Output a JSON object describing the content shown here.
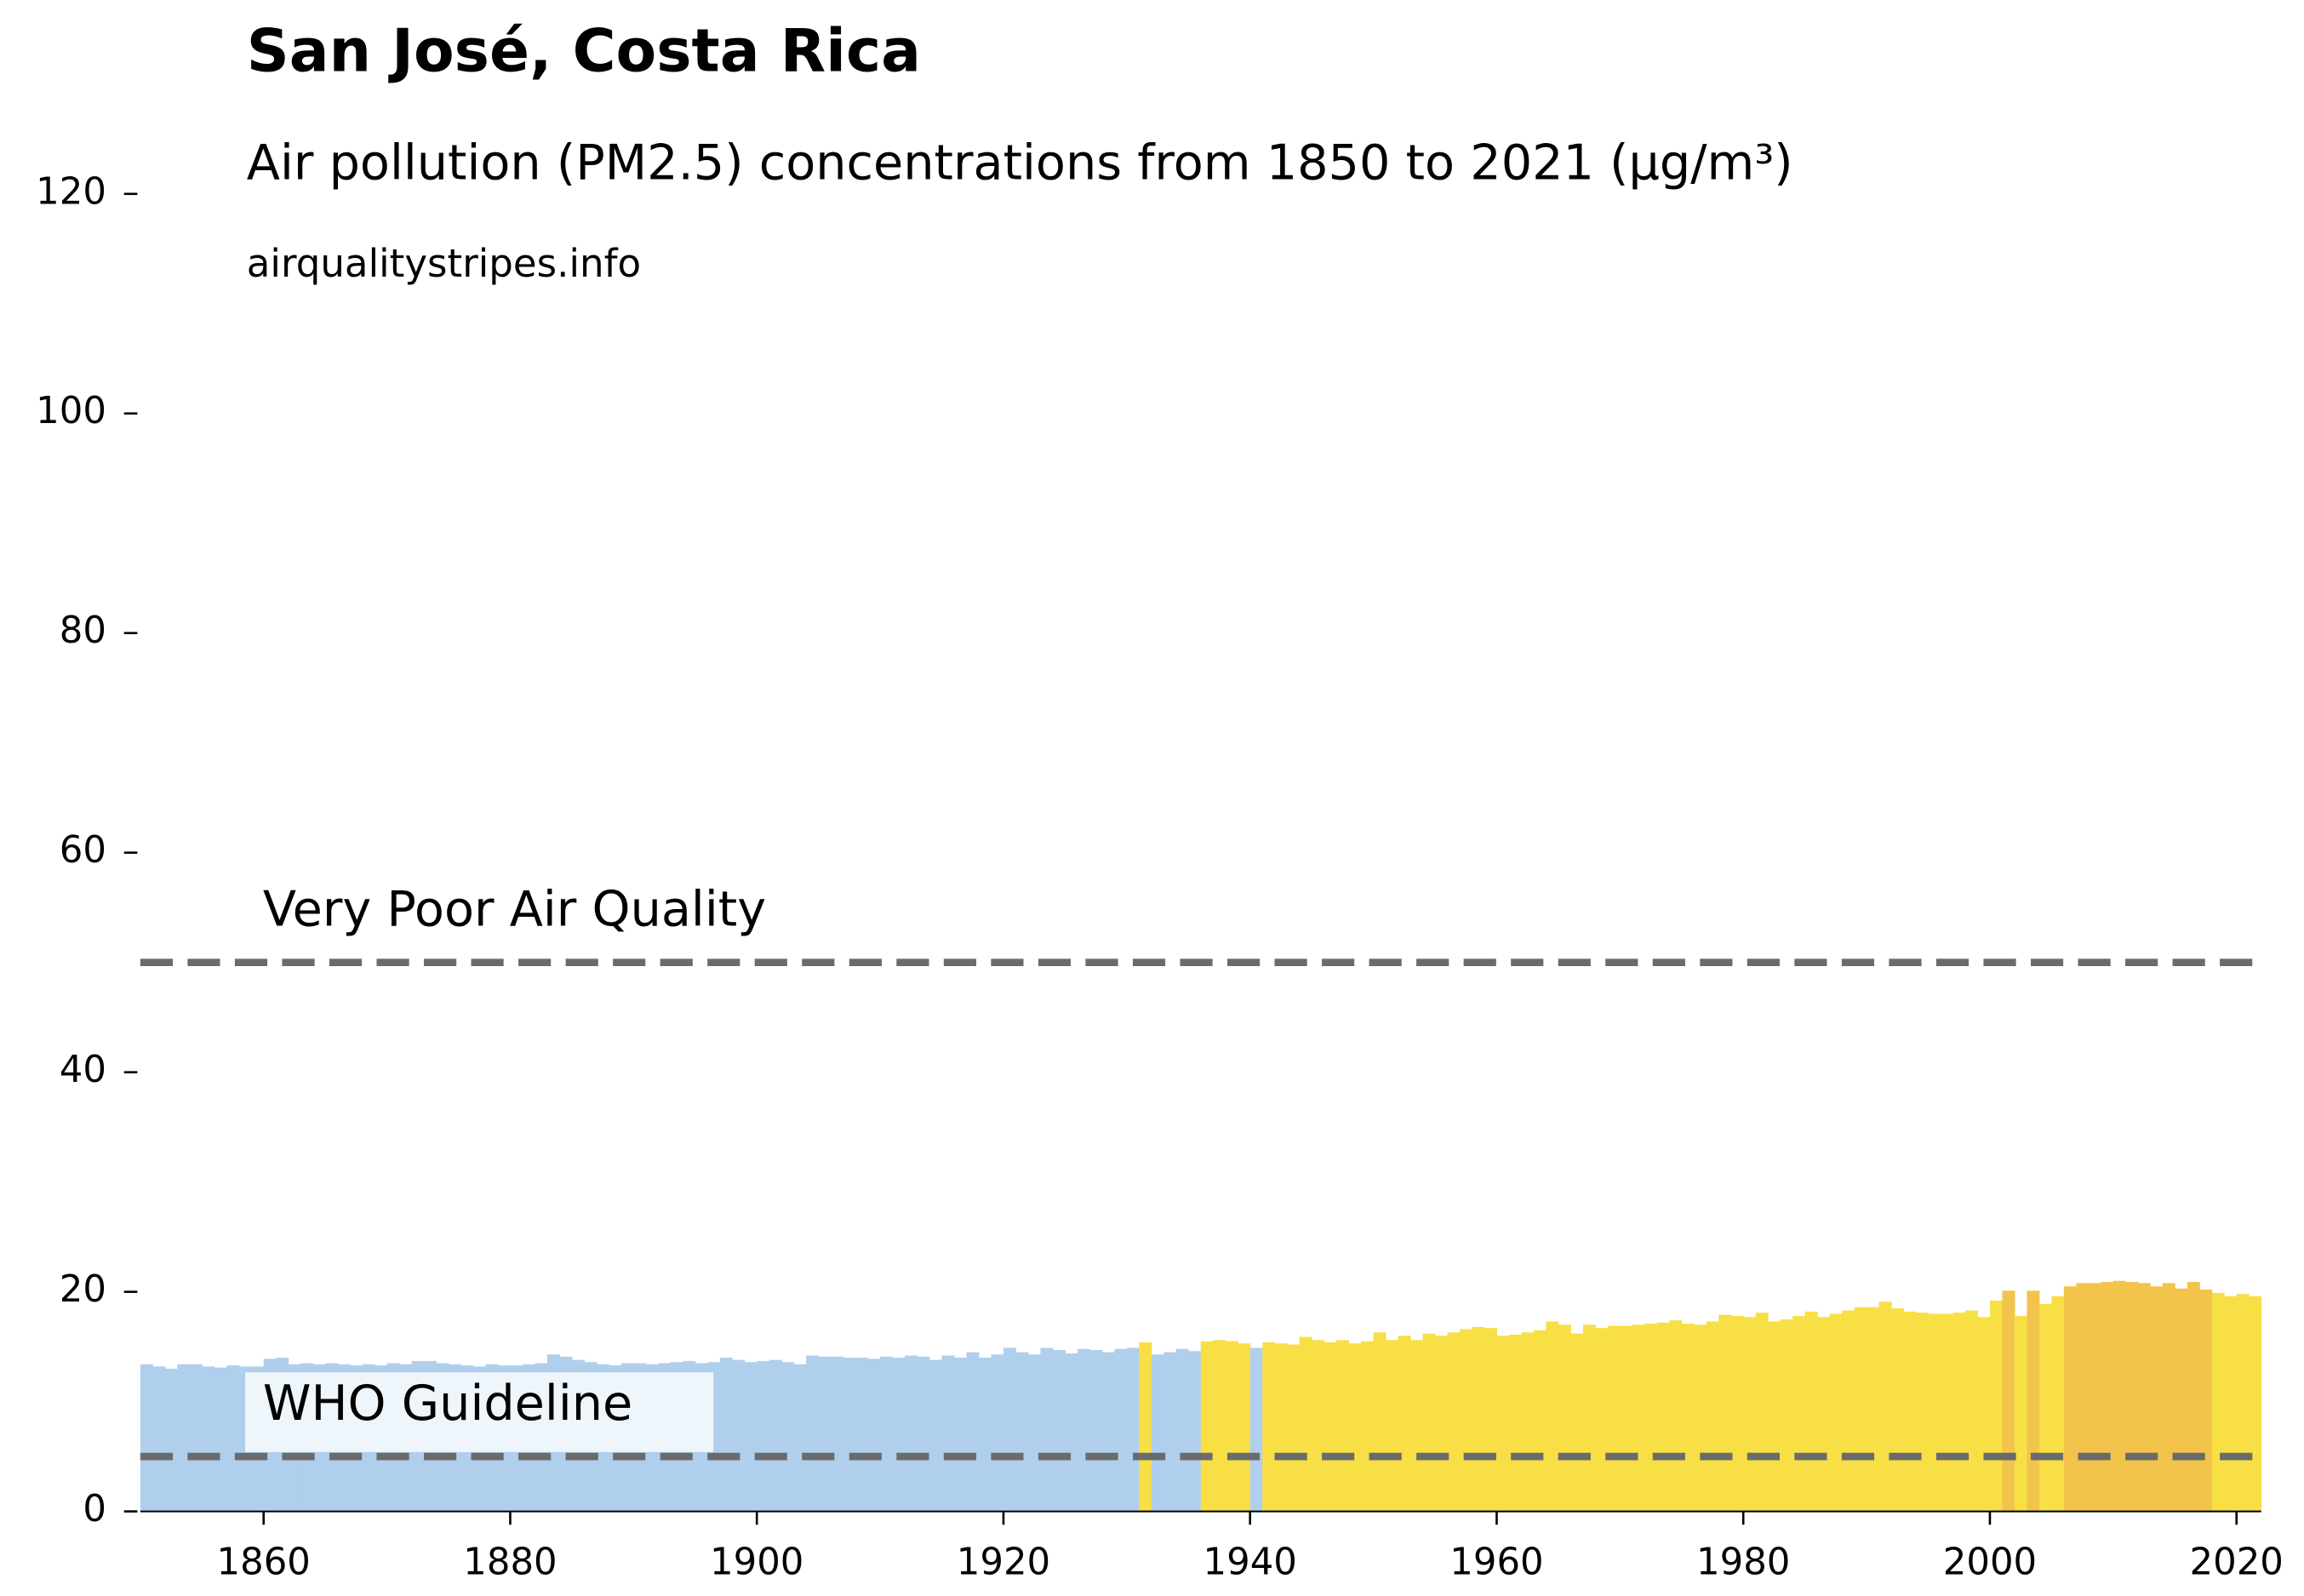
{
  "chart_data": {
    "type": "bar",
    "title": "San José, Costa Rica",
    "subtitle": "Air pollution (PM2.5) concentrations from 1850 to 2021 (µg/m³)",
    "source": "airqualitystripes.info",
    "x_start": 1850,
    "values": [
      13.4,
      13.2,
      13.0,
      13.4,
      13.4,
      13.2,
      13.1,
      13.3,
      13.2,
      13.2,
      13.9,
      14.0,
      13.4,
      13.5,
      13.4,
      13.5,
      13.4,
      13.3,
      13.4,
      13.3,
      13.5,
      13.4,
      13.7,
      13.7,
      13.5,
      13.4,
      13.3,
      13.2,
      13.4,
      13.3,
      13.3,
      13.4,
      13.5,
      14.3,
      14.1,
      13.8,
      13.6,
      13.4,
      13.3,
      13.5,
      13.5,
      13.4,
      13.5,
      13.6,
      13.7,
      13.5,
      13.6,
      14.0,
      13.8,
      13.6,
      13.7,
      13.8,
      13.6,
      13.4,
      14.2,
      14.1,
      14.1,
      14.0,
      14.0,
      13.9,
      14.1,
      14.0,
      14.2,
      14.1,
      13.8,
      14.2,
      14.0,
      14.5,
      14.0,
      14.3,
      14.9,
      14.5,
      14.3,
      14.9,
      14.7,
      14.4,
      14.8,
      14.7,
      14.5,
      14.8,
      14.9,
      15.4,
      14.3,
      14.5,
      14.8,
      14.6,
      15.5,
      15.6,
      15.5,
      15.3,
      14.9,
      15.4,
      15.3,
      15.2,
      15.9,
      15.6,
      15.4,
      15.6,
      15.3,
      15.5,
      16.3,
      15.6,
      16.0,
      15.6,
      16.2,
      16.0,
      16.3,
      16.6,
      16.8,
      16.7,
      16.0,
      16.1,
      16.3,
      16.5,
      17.3,
      17.0,
      16.2,
      17.0,
      16.7,
      16.9,
      16.9,
      17.0,
      17.1,
      17.2,
      17.4,
      17.1,
      17.0,
      17.3,
      17.9,
      17.8,
      17.7,
      18.1,
      17.3,
      17.5,
      17.8,
      18.2,
      17.7,
      18.0,
      18.3,
      18.6,
      18.6,
      19.1,
      18.5,
      18.2,
      18.1,
      18.0,
      18.0,
      18.1,
      18.3,
      17.7,
      19.2,
      20.1,
      17.8,
      20.1,
      18.9,
      19.6,
      20.5,
      20.8,
      20.8,
      20.9,
      21.0,
      20.9,
      20.8,
      20.5,
      20.8,
      20.3,
      20.9,
      20.2,
      19.9,
      19.6,
      19.8,
      19.6
    ],
    "color_scale": {
      "breaks": [
        15,
        20
      ],
      "colors": [
        "#b0cfed",
        "#f8df45",
        "#f2c44c"
      ]
    },
    "xlim": [
      1850,
      2022
    ],
    "xticks": [
      1860,
      1880,
      1900,
      1920,
      1940,
      1960,
      1980,
      2000,
      2020
    ],
    "ylim": [
      0,
      120
    ],
    "yticks": [
      0,
      20,
      40,
      60,
      80,
      100,
      120
    ],
    "reference_lines": [
      {
        "value": 5,
        "label": "WHO Guideline"
      },
      {
        "value": 50,
        "label": "Very Poor Air Quality"
      }
    ]
  }
}
